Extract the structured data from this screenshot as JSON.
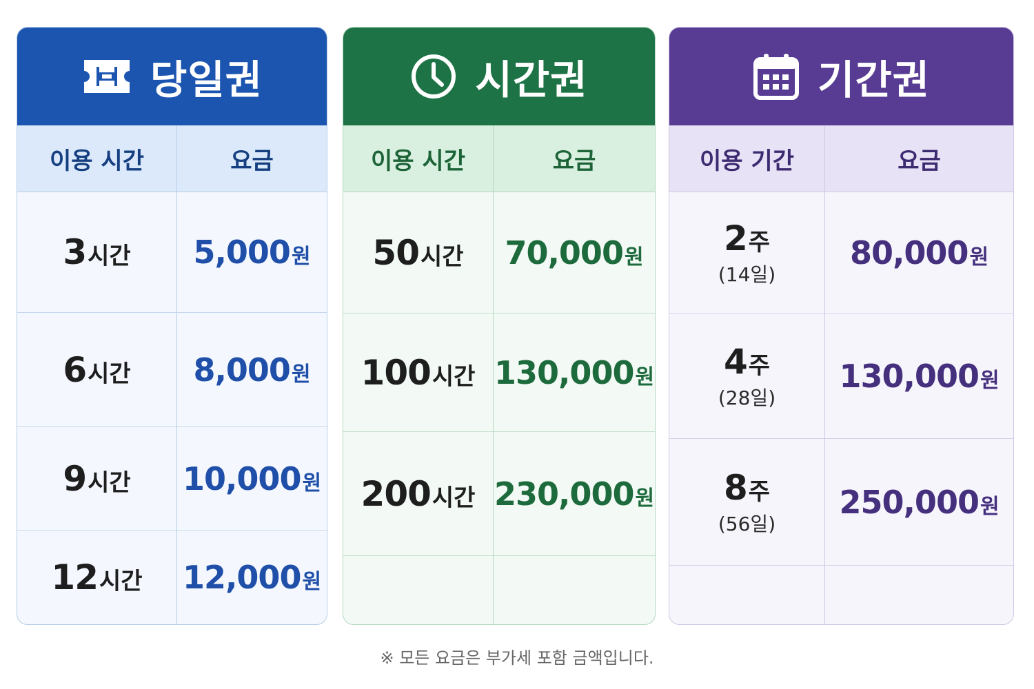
{
  "daily": {
    "title": "당일권",
    "icon": "ticket-icon",
    "color": "#1c55b0",
    "col_left": "이용 시간",
    "col_right": "요금",
    "rows": [
      {
        "amount": "3",
        "unit": "시간",
        "price": "5,000",
        "won": "원"
      },
      {
        "amount": "6",
        "unit": "시간",
        "price": "8,000",
        "won": "원"
      },
      {
        "amount": "9",
        "unit": "시간",
        "price": "10,000",
        "won": "원"
      },
      {
        "amount": "12",
        "unit": "시간",
        "price": "12,000",
        "won": "원"
      }
    ]
  },
  "hourly": {
    "title": "시간권",
    "icon": "clock-icon",
    "color": "#1d7345",
    "col_left": "이용 시간",
    "col_right": "요금",
    "rows": [
      {
        "amount": "50",
        "unit": "시간",
        "price": "70,000",
        "won": "원"
      },
      {
        "amount": "100",
        "unit": "시간",
        "price": "130,000",
        "won": "원"
      },
      {
        "amount": "200",
        "unit": "시간",
        "price": "230,000",
        "won": "원"
      }
    ]
  },
  "period": {
    "title": "기간권",
    "icon": "calendar-icon",
    "color": "#583c93",
    "col_left": "이용 기간",
    "col_right": "요금",
    "rows": [
      {
        "amount": "2",
        "unit": "주",
        "days": "(14일)",
        "price": "80,000",
        "won": "원"
      },
      {
        "amount": "4",
        "unit": "주",
        "days": "(28일)",
        "price": "130,000",
        "won": "원"
      },
      {
        "amount": "8",
        "unit": "주",
        "days": "(56일)",
        "price": "250,000",
        "won": "원"
      }
    ]
  },
  "footnote": "※ 모든 요금은 부가세 포함 금액입니다."
}
